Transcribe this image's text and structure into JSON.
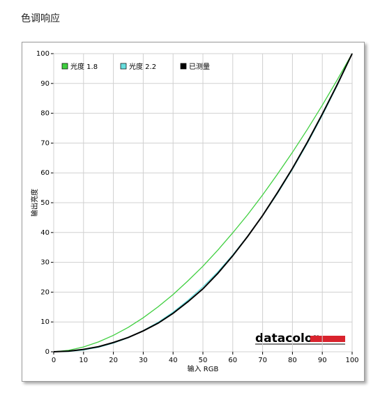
{
  "page_title": "色调响应",
  "logo": "datacolor",
  "chart_data": {
    "type": "line",
    "x_label": "输入 RGB",
    "y_label": "输出亮度",
    "x": [
      0,
      5,
      10,
      15,
      20,
      25,
      30,
      35,
      40,
      45,
      50,
      55,
      60,
      65,
      70,
      75,
      80,
      85,
      90,
      95,
      100
    ],
    "series": [
      {
        "name": "光度 1.8",
        "color": "#3fcf3f",
        "values": [
          0,
          0.5,
          1.6,
          3.3,
          5.5,
          8.2,
          11.4,
          15.1,
          19.2,
          23.8,
          28.7,
          34.1,
          39.9,
          46.0,
          52.6,
          59.6,
          66.9,
          74.6,
          82.7,
          91.2,
          100
        ]
      },
      {
        "name": "光度 2.2",
        "color": "#66dede",
        "values": [
          0,
          0.1,
          0.6,
          1.5,
          2.9,
          4.7,
          7.1,
          9.9,
          13.3,
          17.3,
          21.8,
          26.8,
          32.5,
          38.8,
          45.6,
          53.1,
          61.2,
          69.9,
          79.3,
          89.3,
          100
        ]
      },
      {
        "name": "已测量",
        "color": "#000000",
        "values": [
          0,
          0.2,
          0.8,
          1.7,
          3.1,
          4.8,
          7.0,
          9.6,
          12.9,
          16.8,
          21.1,
          26.3,
          32.2,
          38.7,
          45.7,
          53.4,
          61.5,
          70.3,
          79.7,
          89.6,
          100
        ]
      }
    ],
    "xlim": [
      0,
      100
    ],
    "ylim": [
      0,
      100
    ],
    "xticks": [
      0,
      10,
      20,
      30,
      40,
      50,
      60,
      70,
      80,
      90,
      100
    ],
    "yticks": [
      0,
      10,
      20,
      30,
      40,
      50,
      60,
      70,
      80,
      90,
      100
    ],
    "grid": true,
    "legend_position": "upper left"
  }
}
